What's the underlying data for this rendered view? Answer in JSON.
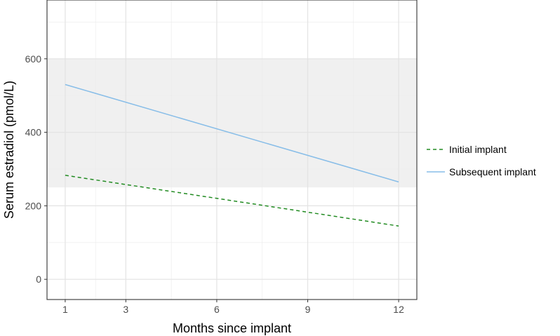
{
  "chart_data": {
    "type": "line",
    "xlabel": "Months since implant",
    "ylabel": "Serum estradiol (pmol/L)",
    "x_ticks": [
      1,
      3,
      6,
      9,
      12
    ],
    "y_ticks": [
      0,
      200,
      400,
      600
    ],
    "x_tick_labels": [
      "1",
      "3",
      "6",
      "9",
      "12"
    ],
    "y_tick_labels": [
      "0",
      "200",
      "400",
      "600"
    ],
    "xlim": [
      0.4,
      12.6
    ],
    "ylim": [
      -55,
      760
    ],
    "grid": true,
    "legend_position": "right",
    "reference_band": {
      "y_from": 250,
      "y_to": 600,
      "color": "#f0f0f0"
    },
    "series": [
      {
        "name": "Initial implant",
        "x": [
          1,
          12
        ],
        "values": [
          283,
          145
        ],
        "color": "#228b22",
        "dash": "dashed"
      },
      {
        "name": "Subsequent implant",
        "x": [
          1,
          12
        ],
        "values": [
          530,
          265
        ],
        "color": "#87bde8",
        "dash": "solid"
      }
    ]
  }
}
